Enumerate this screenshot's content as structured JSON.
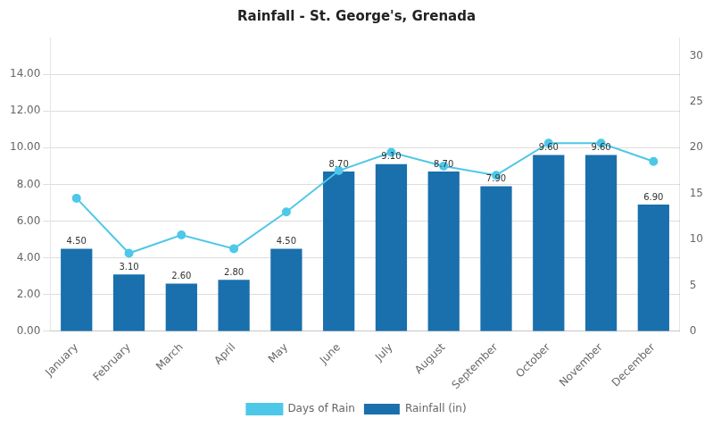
{
  "chart_data": {
    "type": "bar",
    "title": "Rainfall - St. George's, Grenada",
    "categories": [
      "January",
      "February",
      "March",
      "April",
      "May",
      "June",
      "July",
      "August",
      "September",
      "October",
      "November",
      "December"
    ],
    "series": [
      {
        "name": "Rainfall (in)",
        "type": "bar",
        "color": "#1a6fad",
        "values": [
          4.5,
          3.1,
          2.6,
          2.8,
          4.5,
          8.7,
          9.1,
          8.7,
          7.9,
          9.6,
          9.6,
          6.9
        ],
        "value_labels": [
          "4.50",
          "3.10",
          "2.60",
          "2.80",
          "4.50",
          "8.70",
          "9.10",
          "8.70",
          "7.90",
          "9.60",
          "9.60",
          "6.90"
        ]
      },
      {
        "name": "Days of Rain",
        "type": "line",
        "color": "#4dc8e8",
        "marker": "circle",
        "axis": "y2",
        "values": [
          14.5,
          8.5,
          10.5,
          9.0,
          13.0,
          17.5,
          19.5,
          18.0,
          17.0,
          20.5,
          20.5,
          18.5
        ]
      }
    ],
    "ylim": [
      0,
      16.0
    ],
    "yticks": [
      {
        "value": 0.0,
        "label": "0.00"
      },
      {
        "value": 2.0,
        "label": "2.00"
      },
      {
        "value": 4.0,
        "label": "4.00"
      },
      {
        "value": 6.0,
        "label": "6.00"
      },
      {
        "value": 8.0,
        "label": "8.00"
      },
      {
        "value": 10.0,
        "label": "10.00"
      },
      {
        "value": 12.0,
        "label": "12.00"
      },
      {
        "value": 14.0,
        "label": "14.00"
      }
    ],
    "y2lim": [
      0,
      32.0
    ],
    "y2ticks": [
      0,
      5,
      10,
      15,
      20,
      25,
      30
    ],
    "grid": true,
    "legend": "bottom",
    "data_labels": true
  }
}
